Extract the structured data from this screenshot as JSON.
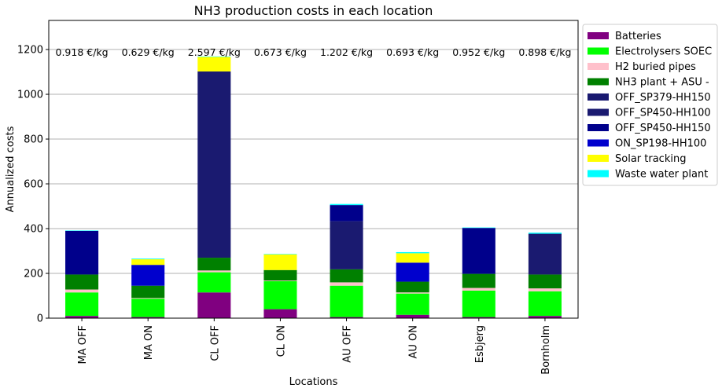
{
  "chart_data": {
    "type": "bar",
    "stacked": true,
    "title": "NH3 production costs in each location",
    "xlabel": "Locations",
    "ylabel": "Annualized costs",
    "ylim": [
      0,
      1330
    ],
    "yticks": [
      0,
      200,
      400,
      600,
      800,
      1000,
      1200
    ],
    "grid": "horizontal",
    "legend_position": "outside-right",
    "categories": [
      "MA OFF",
      "MA ON",
      "CL OFF",
      "CL ON",
      "AU OFF",
      "AU ON",
      "Esbjerg",
      "Bornholm"
    ],
    "cost_labels": [
      "0.918 €/kg",
      "0.629 €/kg",
      "2.597 €/kg",
      "0.673 €/kg",
      "1.202 €/kg",
      "0.693 €/kg",
      "0.952 €/kg",
      "0.898 €/kg"
    ],
    "series": [
      {
        "name": "Batteries",
        "color": "#800080",
        "values": [
          10,
          5,
          115,
          40,
          5,
          15,
          5,
          10
        ]
      },
      {
        "name": "Electrolysers SOEC",
        "color": "#00ff00",
        "values": [
          105,
          82,
          90,
          125,
          140,
          95,
          118,
          110
        ]
      },
      {
        "name": "H2 buried pipes",
        "color": "#ffc0cb",
        "values": [
          13,
          3,
          8,
          3,
          15,
          5,
          12,
          13
        ]
      },
      {
        "name": "NH3 plant + ASU -",
        "color": "#008000",
        "values": [
          67,
          55,
          57,
          47,
          58,
          48,
          63,
          62
        ]
      },
      {
        "name": "OFF_SP379-HH150",
        "color": "#191970",
        "values": [
          0,
          0,
          0,
          0,
          0,
          0,
          0,
          0
        ]
      },
      {
        "name": "OFF_SP450-HH100",
        "color": "#1a1a70",
        "values": [
          0,
          0,
          832,
          0,
          215,
          0,
          0,
          182
        ]
      },
      {
        "name": "OFF_SP450-HH150",
        "color": "#00008b",
        "values": [
          195,
          0,
          0,
          0,
          72,
          0,
          205,
          0
        ]
      },
      {
        "name": "ON_SP198-HH100",
        "color": "#0000cd",
        "values": [
          0,
          93,
          0,
          0,
          0,
          85,
          0,
          0
        ]
      },
      {
        "name": "Solar tracking",
        "color": "#ffff00",
        "values": [
          0,
          25,
          65,
          70,
          0,
          42,
          0,
          0
        ]
      },
      {
        "name": "Waste water plant",
        "color": "#00ffff",
        "values": [
          2,
          3,
          2,
          2,
          5,
          5,
          2,
          5
        ]
      }
    ]
  }
}
